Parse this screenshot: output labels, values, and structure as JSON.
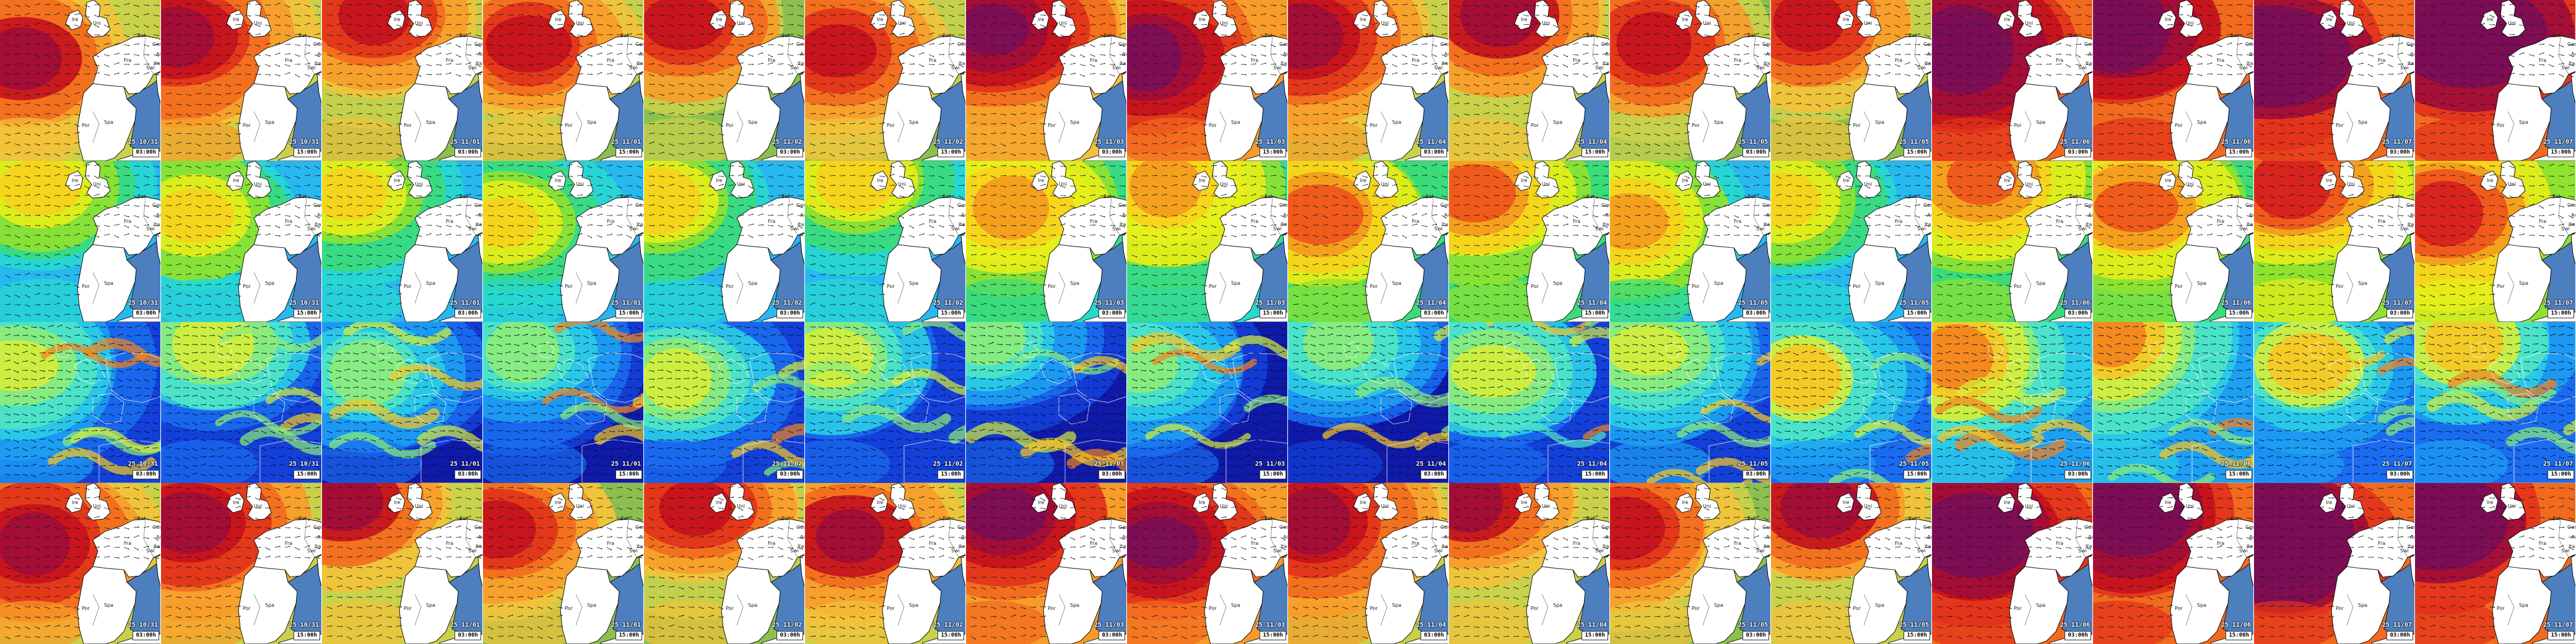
{
  "panels": {
    "dates": [
      "25 10/31",
      "25 10/31",
      "25 11/01",
      "25 11/01",
      "25 11/02",
      "25 11/02",
      "25 11/03",
      "25 11/03",
      "25 11/04",
      "25 11/04",
      "25 11/05",
      "25 11/05",
      "25 11/06",
      "25 11/06",
      "25 11/07",
      "25 11/07"
    ],
    "times": [
      "03:00h",
      "15:00h",
      "03:00h",
      "15:00h",
      "03:00h",
      "15:00h",
      "03:00h",
      "15:00h",
      "03:00h",
      "15:00h",
      "03:00h",
      "15:00h",
      "03:00h",
      "15:00h",
      "03:00h",
      "15:00h"
    ]
  },
  "rows": [
    {
      "kind": "wave-height",
      "map": "zoomed",
      "intensity": [
        0.55,
        0.6,
        0.5,
        0.5,
        0.45,
        0.5,
        0.7,
        0.75,
        0.6,
        0.55,
        0.45,
        0.5,
        0.85,
        0.85,
        0.9,
        0.9
      ]
    },
    {
      "kind": "wave-period",
      "map": "zoomed",
      "intensity": [
        0.35,
        0.35,
        0.3,
        0.3,
        0.3,
        0.35,
        0.5,
        0.5,
        0.6,
        0.55,
        0.4,
        0.35,
        0.55,
        0.55,
        0.7,
        0.7
      ]
    },
    {
      "kind": "wind-speed",
      "map": "wide",
      "intensity": [
        0.5,
        0.45,
        0.4,
        0.4,
        0.45,
        0.45,
        0.4,
        0.4,
        0.35,
        0.45,
        0.5,
        0.55,
        0.7,
        0.7,
        0.55,
        0.55
      ]
    },
    {
      "kind": "wave-height",
      "map": "zoomed",
      "intensity": [
        0.6,
        0.6,
        0.55,
        0.5,
        0.5,
        0.55,
        0.75,
        0.75,
        0.6,
        0.55,
        0.5,
        0.55,
        0.85,
        0.85,
        0.9,
        0.9
      ]
    }
  ],
  "place_labels": [
    "Fra",
    "Spa",
    "Ita",
    "Ire",
    "Uni",
    "Bel",
    "Ger",
    "Por",
    "Aus",
    "Swi"
  ],
  "colors": {
    "land": "#ffffff",
    "inland_sea": "#4d7fbf",
    "coast_line": "#000000",
    "wave_scale": [
      "#5fa84a",
      "#8cbf4f",
      "#c9d14b",
      "#f2c23a",
      "#f79c2a",
      "#f26a1e",
      "#e2321b",
      "#c4111d",
      "#9e0c3a",
      "#7a0d56"
    ],
    "period_scale": [
      "#28b8f0",
      "#27d8d0",
      "#3bdb7a",
      "#8fe22f",
      "#e6ee1a",
      "#f7d11c",
      "#f59a1e",
      "#f0531c",
      "#d61e1e"
    ],
    "wind_scale": [
      "#0f1aa8",
      "#1340d8",
      "#1a6cf0",
      "#1d9ff2",
      "#2ccde7",
      "#4ee6c5",
      "#8cec79",
      "#d4ee3a",
      "#f6c724",
      "#f4831d"
    ]
  }
}
